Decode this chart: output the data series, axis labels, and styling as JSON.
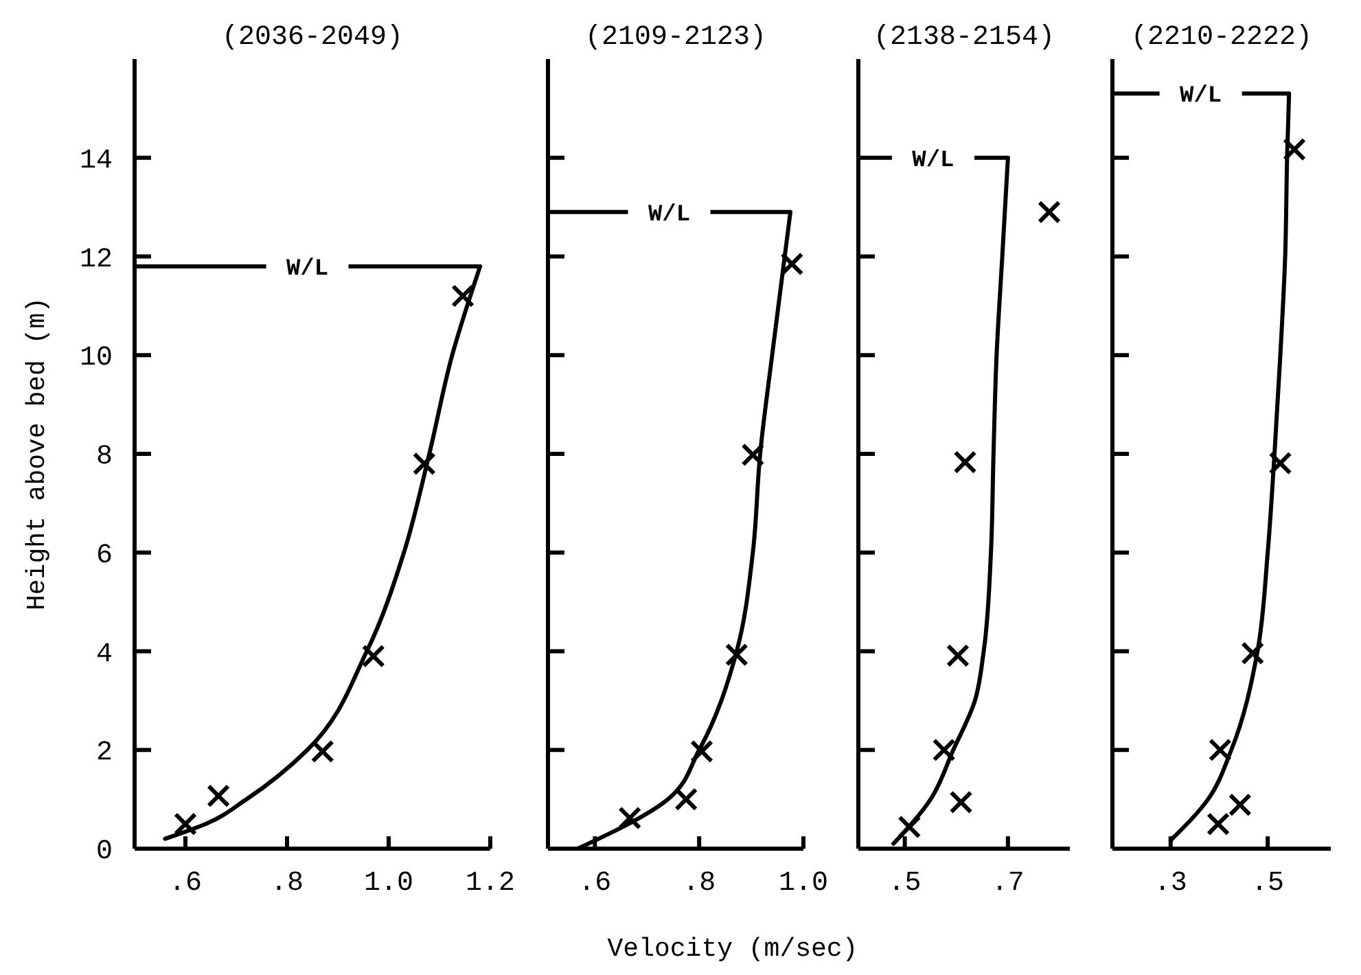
{
  "chart_data": [
    {
      "type": "scatter",
      "title": "(2036-2049)",
      "xlabel": "Velocity (m/sec)",
      "ylabel": "Height above bed (m)",
      "xlim": [
        0.5,
        1.2
      ],
      "xticks": [
        {
          "value": 0.6,
          "label": ".6"
        },
        {
          "value": 0.8,
          "label": ".8"
        },
        {
          "value": 1.0,
          "label": "1.0"
        },
        {
          "value": 1.2,
          "label": "1.2"
        }
      ],
      "ylim": [
        0,
        16
      ],
      "yticks": [
        0,
        2,
        4,
        6,
        8,
        10,
        12,
        14
      ],
      "marker": "cross",
      "series": [
        {
          "color": "#000000",
          "x": [
            0.6,
            0.665,
            0.87,
            0.97,
            1.07,
            1.146
          ],
          "values": [
            0.5,
            1.07,
            1.97,
            3.9,
            7.8,
            11.2
          ]
        },
        {
          "type": "line",
          "color": "#000000",
          "marker": "none",
          "line_style": "solid",
          "x": [
            0.56,
            0.64,
            0.72,
            0.84,
            0.957,
            1.03,
            1.08,
            1.125,
            1.18
          ],
          "values": [
            0.2,
            0.5,
            1,
            2,
            4,
            6,
            8,
            10,
            11.8
          ]
        }
      ],
      "ref_lines": [
        {
          "axis": "y",
          "value": 11.8,
          "label": "W/L",
          "color": "#000000"
        }
      ]
    },
    {
      "type": "scatter",
      "title": "(2109-2123)",
      "xlim": [
        0.51,
        1.0
      ],
      "xticks": [
        {
          "value": 0.6,
          "label": ".6"
        },
        {
          "value": 0.8,
          "label": ".8"
        },
        {
          "value": 1.0,
          "label": "1.0"
        }
      ],
      "ylim": [
        0,
        16
      ],
      "yticks": [
        {
          "value": 2,
          "label": null
        },
        {
          "value": 4,
          "label": null
        },
        {
          "value": 6,
          "label": null
        },
        {
          "value": 8,
          "label": null
        },
        {
          "value": 10,
          "label": null
        },
        {
          "value": 12,
          "label": null
        },
        {
          "value": 14,
          "label": null
        }
      ],
      "tick_labels": "x",
      "marker": "cross",
      "series": [
        {
          "color": "#000000",
          "x": [
            0.667,
            0.775,
            0.805,
            0.872,
            0.903,
            0.978
          ],
          "values": [
            0.62,
            1.0,
            1.97,
            3.93,
            7.98,
            11.85
          ]
        },
        {
          "type": "line",
          "color": "#000000",
          "marker": "none",
          "line_style": "solid",
          "x": [
            0.567,
            0.74,
            0.8,
            0.872,
            0.903,
            0.917,
            0.94,
            0.975
          ],
          "values": [
            0,
            1,
            2,
            4,
            6,
            8,
            10,
            12.9
          ]
        }
      ],
      "ref_lines": [
        {
          "axis": "y",
          "value": 12.9,
          "label": "W/L",
          "color": "#000000"
        }
      ]
    },
    {
      "type": "scatter",
      "title": "(2138-2154)",
      "xlim": [
        0.41,
        0.82
      ],
      "xticks": [
        {
          "value": 0.5,
          "label": ".5"
        },
        {
          "value": 0.7,
          "label": ".7"
        }
      ],
      "ylim": [
        0,
        16
      ],
      "yticks": [
        {
          "value": 2,
          "label": null
        },
        {
          "value": 4,
          "label": null
        },
        {
          "value": 6,
          "label": null
        },
        {
          "value": 8,
          "label": null
        },
        {
          "value": 10,
          "label": null
        },
        {
          "value": 12,
          "label": null
        }
      ],
      "tick_labels": "x",
      "marker": "cross",
      "series": [
        {
          "color": "#000000",
          "x": [
            0.509,
            0.609,
            0.576,
            0.603,
            0.617,
            0.78
          ],
          "values": [
            0.44,
            0.94,
            2.0,
            3.91,
            7.83,
            12.9
          ]
        },
        {
          "type": "line",
          "color": "#000000",
          "marker": "none",
          "line_style": "solid",
          "x": [
            0.478,
            0.55,
            0.594,
            0.636,
            0.653,
            0.667,
            0.672,
            0.678,
            0.689,
            0.7
          ],
          "values": [
            0.1,
            1,
            2,
            3,
            4,
            6,
            8,
            10,
            12,
            14
          ]
        }
      ],
      "ref_lines": [
        {
          "axis": "y",
          "value": 14,
          "label": "W/L",
          "color": "#000000"
        }
      ]
    },
    {
      "type": "scatter",
      "title": "(2210-2222)",
      "xlim": [
        0.18,
        0.63
      ],
      "xticks": [
        {
          "value": 0.3,
          "label": ".3"
        },
        {
          "value": 0.5,
          "label": ".5"
        }
      ],
      "ylim": [
        0,
        16
      ],
      "yticks": [
        {
          "value": 2,
          "label": null
        },
        {
          "value": 4,
          "label": null
        },
        {
          "value": 6,
          "label": null
        },
        {
          "value": 8,
          "label": null
        },
        {
          "value": 10,
          "label": null
        },
        {
          "value": 12,
          "label": null
        },
        {
          "value": 14,
          "label": null
        }
      ],
      "tick_labels": "x",
      "marker": "cross",
      "series": [
        {
          "color": "#000000",
          "x": [
            0.398,
            0.443,
            0.402,
            0.469,
            0.526,
            0.555
          ],
          "values": [
            0.5,
            0.89,
            2.0,
            3.96,
            7.81,
            14.17
          ]
        },
        {
          "type": "line",
          "color": "#000000",
          "marker": "none",
          "line_style": "solid",
          "x": [
            0.3,
            0.377,
            0.425,
            0.479,
            0.5,
            0.514,
            0.526,
            0.536,
            0.54,
            0.544
          ],
          "values": [
            0.17,
            1,
            2,
            4,
            6,
            8,
            10,
            12,
            14,
            15.3
          ]
        }
      ],
      "ref_lines": [
        {
          "axis": "y",
          "value": 15.3,
          "label": "W/L",
          "color": "#000000"
        }
      ]
    }
  ]
}
